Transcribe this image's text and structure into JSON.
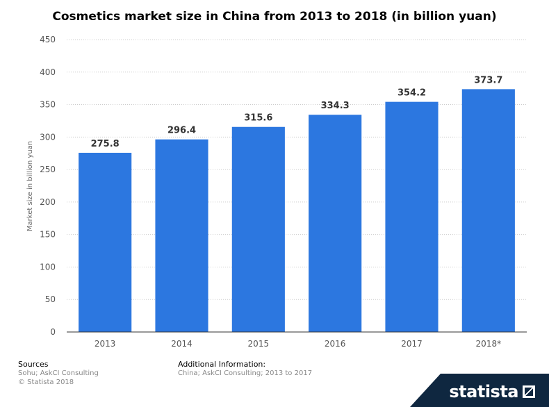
{
  "colors": {
    "bar": "#2c77e0",
    "grid": "#cccccc",
    "axis_text": "#555555",
    "brand_background": "#0f2740"
  },
  "chart_data": {
    "type": "bar",
    "title": "Cosmetics market size in China from 2013 to 2018 (in billion yuan)",
    "xlabel": "",
    "ylabel": "Market size in billion yuan",
    "categories": [
      "2013",
      "2014",
      "2015",
      "2016",
      "2017",
      "2018*"
    ],
    "values": [
      275.8,
      296.4,
      315.6,
      334.3,
      354.2,
      373.7
    ],
    "value_labels": [
      "275.8",
      "296.4",
      "315.6",
      "334.3",
      "354.2",
      "373.7"
    ],
    "ylim": [
      0,
      450
    ],
    "yticks": [
      0,
      50,
      100,
      150,
      200,
      250,
      300,
      350,
      400,
      450
    ],
    "grid": true,
    "legend": "none"
  },
  "footer": {
    "sources_heading": "Sources",
    "sources_text": "Sohu; AskCI Consulting",
    "copyright": "© Statista 2018",
    "additional_heading": "Additional Information:",
    "additional_text": "China; AskCI Consulting; 2013 to 2017"
  },
  "brand": {
    "name": "statista",
    "icon": "statista-logo-icon"
  }
}
